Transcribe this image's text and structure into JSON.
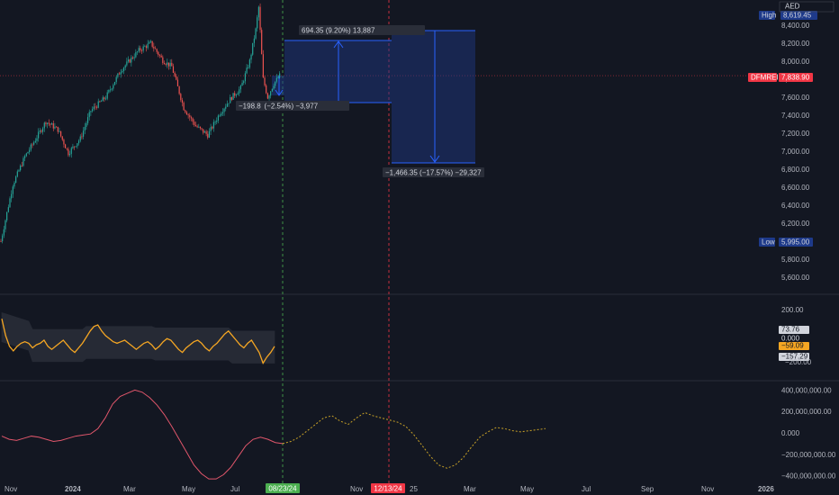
{
  "currency": "AED",
  "symbol_tag": "DFMREI",
  "last_price": "7,838.90",
  "high_label": "High",
  "high_value": "8,619.45",
  "low_label": "Low",
  "low_value": "5,995.00",
  "colors": {
    "background": "#131722",
    "up": "#26a69a",
    "down": "#ef5350",
    "measure_fill": "#1e3a8a",
    "measure_line": "#2962ff",
    "osc_line": "#f5a623",
    "band_line": "#b2b5be",
    "flow_line": "#e0566b",
    "forecast": "#c9a227",
    "green_tag": "#4caf50",
    "red_tag": "#f23645"
  },
  "price_axis": [
    "8,400.00",
    "8,200.00",
    "8,000.00",
    "7,800.00",
    "7,600.00",
    "7,400.00",
    "7,200.00",
    "7,000.00",
    "6,800.00",
    "6,600.00",
    "6,400.00",
    "6,200.00",
    "6,000.00",
    "5,800.00",
    "5,600.00"
  ],
  "osc_axis": {
    "top": "200.00",
    "labels": [
      {
        "text": "73.76",
        "style": "light"
      },
      {
        "text": "0.000",
        "style": "dark"
      },
      {
        "text": "−59.09",
        "style": "orange"
      },
      {
        "text": "−157.29",
        "style": "light"
      }
    ],
    "bottom": "−200.00"
  },
  "flow_axis": [
    "400,000,000.00",
    "200,000,000.00",
    "0.000",
    "−200,000,000.00",
    "−400,000,000.00"
  ],
  "time_axis": [
    "Nov",
    "2024",
    "Mar",
    "May",
    "Jul",
    "Nov",
    "25",
    "Mar",
    "May",
    "Jul",
    "Sep",
    "Nov",
    "2026"
  ],
  "date_tags": {
    "green": "08/23/24",
    "red": "12/13/24"
  },
  "measures": {
    "m1": "694.35 (9.20%) 13,887",
    "m2": "−198.8  (−2.54%) −3,977",
    "m3": "−1,466.35 (−17.57%) −29,327"
  },
  "chart_data": {
    "type": "candlestick",
    "ylim": [
      5500,
      8650
    ],
    "anchors": [
      [
        0,
        6000
      ],
      [
        8,
        6630
      ],
      [
        16,
        6940
      ],
      [
        22,
        7100
      ],
      [
        30,
        7330
      ],
      [
        38,
        7240
      ],
      [
        45,
        6980
      ],
      [
        53,
        7140
      ],
      [
        60,
        7450
      ],
      [
        70,
        7600
      ],
      [
        80,
        7900
      ],
      [
        92,
        8120
      ],
      [
        100,
        8200
      ],
      [
        108,
        8010
      ],
      [
        114,
        7940
      ],
      [
        122,
        7480
      ],
      [
        130,
        7280
      ],
      [
        138,
        7180
      ],
      [
        146,
        7420
      ],
      [
        154,
        7600
      ],
      [
        160,
        7700
      ],
      [
        166,
        8000
      ],
      [
        170,
        8350
      ],
      [
        172,
        8600
      ],
      [
        175,
        7800
      ],
      [
        178,
        7600
      ],
      [
        182,
        7750
      ],
      [
        186,
        7840
      ]
    ],
    "osc_series": [
      140,
      30,
      -40,
      -70,
      -40,
      -20,
      -10,
      -20,
      -50,
      -30,
      -20,
      0,
      -40,
      -60,
      -40,
      -20,
      0,
      -30,
      -60,
      -80,
      -50,
      -20,
      20,
      60,
      90,
      100,
      60,
      30,
      10,
      -10,
      -20,
      -10,
      0,
      -20,
      -40,
      -60,
      -40,
      -20,
      -10,
      -30,
      -60,
      -40,
      -10,
      10,
      0,
      -30,
      -60,
      -80,
      -50,
      -30,
      -10,
      0,
      -20,
      -50,
      -70,
      -40,
      -20,
      10,
      40,
      60,
      30,
      0,
      -30,
      -50,
      -20,
      0,
      -40,
      -80,
      -150,
      -110,
      -80,
      -40
    ],
    "flow_series": [
      -30,
      -60,
      -70,
      -50,
      -30,
      -40,
      -60,
      -80,
      -70,
      -50,
      -30,
      -20,
      -10,
      40,
      140,
      270,
      340,
      370,
      400,
      380,
      330,
      260,
      170,
      60,
      -60,
      -180,
      -300,
      -380,
      -430,
      -430,
      -390,
      -320,
      -220,
      -120,
      -60,
      -40,
      -60,
      -90,
      -100
    ],
    "forecast_series": [
      -100,
      -80,
      -40,
      20,
      80,
      140,
      160,
      110,
      80,
      140,
      190,
      160,
      140,
      120,
      100,
      60,
      -20,
      -120,
      -220,
      -300,
      -330,
      -300,
      -230,
      -130,
      -40,
      10,
      50,
      40,
      20,
      10,
      20,
      30,
      40
    ]
  }
}
